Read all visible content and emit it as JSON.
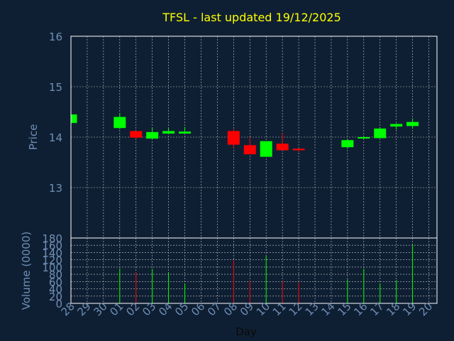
{
  "colors": {
    "background": "#0f1f33",
    "title": "#ffff00",
    "label": "#6f8fb5",
    "frame": "#ffffff",
    "grid": "#c8c8c8",
    "up": "#00ff00",
    "down": "#ff0000"
  },
  "chart_data": [
    {
      "type": "candlestick",
      "title": "TFSL - last updated 19/12/2025",
      "ylabel": "Price",
      "ylim": [
        12.0,
        16.0
      ],
      "yticks": [
        "13",
        "14",
        "15",
        "16"
      ],
      "grid": true,
      "categories": [
        "28",
        "29",
        "30",
        "01",
        "02",
        "03",
        "04",
        "05",
        "06",
        "07",
        "08",
        "09",
        "10",
        "11",
        "12",
        "13",
        "14",
        "15",
        "16",
        "17",
        "18",
        "19",
        "20"
      ],
      "candles": [
        {
          "x": "28",
          "open": 14.28,
          "close": 14.45,
          "high": 14.45,
          "low": 14.28
        },
        {
          "x": "01",
          "open": 14.18,
          "close": 14.4,
          "high": 14.48,
          "low": 14.16
        },
        {
          "x": "02",
          "open": 14.12,
          "close": 13.99,
          "high": 14.12,
          "low": 13.96
        },
        {
          "x": "03",
          "open": 13.97,
          "close": 14.1,
          "high": 14.18,
          "low": 13.97
        },
        {
          "x": "04",
          "open": 14.07,
          "close": 14.12,
          "high": 14.18,
          "low": 14.06
        },
        {
          "x": "05",
          "open": 14.07,
          "close": 14.11,
          "high": 14.2,
          "low": 14.07
        },
        {
          "x": "08",
          "open": 14.12,
          "close": 13.85,
          "high": 14.16,
          "low": 13.78
        },
        {
          "x": "09",
          "open": 13.84,
          "close": 13.66,
          "high": 14.0,
          "low": 13.66
        },
        {
          "x": "10",
          "open": 13.61,
          "close": 13.92,
          "high": 13.92,
          "low": 13.61
        },
        {
          "x": "11",
          "open": 13.87,
          "close": 13.74,
          "high": 14.07,
          "low": 13.74
        },
        {
          "x": "12",
          "open": 13.77,
          "close": 13.74,
          "high": 13.77,
          "low": 13.7
        },
        {
          "x": "15",
          "open": 13.8,
          "close": 13.94,
          "high": 13.96,
          "low": 13.77
        },
        {
          "x": "16",
          "open": 13.98,
          "close": 14.0,
          "high": 14.02,
          "low": 13.97
        },
        {
          "x": "17",
          "open": 13.98,
          "close": 14.17,
          "high": 14.2,
          "low": 13.98
        },
        {
          "x": "18",
          "open": 14.21,
          "close": 14.26,
          "high": 14.27,
          "low": 14.15
        },
        {
          "x": "19",
          "open": 14.22,
          "close": 14.3,
          "high": 14.37,
          "low": 14.17
        }
      ]
    },
    {
      "type": "bar",
      "xlabel": "Day",
      "ylabel": "Volume (0000)",
      "ylim": [
        0,
        180
      ],
      "yticks": [
        "0",
        "20",
        "40",
        "60",
        "80",
        "100",
        "120",
        "140",
        "160",
        "180"
      ],
      "grid": true,
      "categories": [
        "28",
        "29",
        "30",
        "01",
        "02",
        "03",
        "04",
        "05",
        "06",
        "07",
        "08",
        "09",
        "10",
        "11",
        "12",
        "13",
        "14",
        "15",
        "16",
        "17",
        "18",
        "19",
        "20"
      ],
      "bars": [
        {
          "x": "01",
          "value": 96,
          "direction": "up"
        },
        {
          "x": "02",
          "value": 85,
          "direction": "down"
        },
        {
          "x": "03",
          "value": 95,
          "direction": "up"
        },
        {
          "x": "04",
          "value": 85,
          "direction": "up"
        },
        {
          "x": "05",
          "value": 55,
          "direction": "up"
        },
        {
          "x": "08",
          "value": 118,
          "direction": "down"
        },
        {
          "x": "09",
          "value": 62,
          "direction": "down"
        },
        {
          "x": "10",
          "value": 132,
          "direction": "up"
        },
        {
          "x": "11",
          "value": 62,
          "direction": "down"
        },
        {
          "x": "12",
          "value": 57,
          "direction": "down"
        },
        {
          "x": "15",
          "value": 66,
          "direction": "up"
        },
        {
          "x": "16",
          "value": 95,
          "direction": "up"
        },
        {
          "x": "17",
          "value": 55,
          "direction": "up"
        },
        {
          "x": "18",
          "value": 64,
          "direction": "up"
        },
        {
          "x": "19",
          "value": 162,
          "direction": "up"
        }
      ]
    }
  ]
}
